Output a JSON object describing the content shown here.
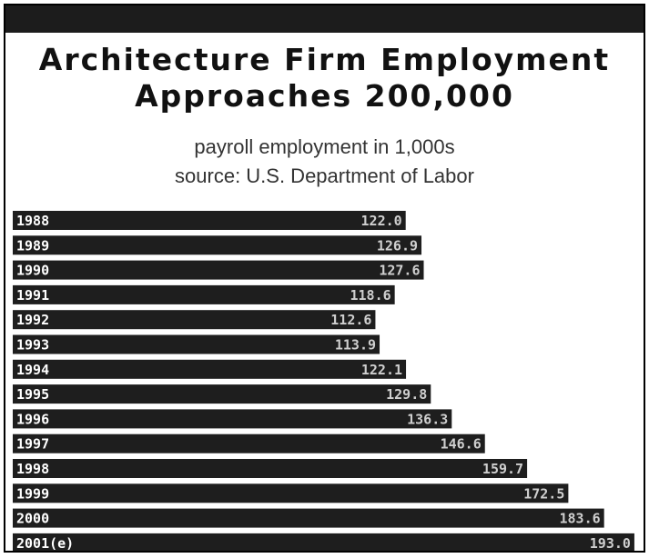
{
  "chart_data": {
    "type": "bar",
    "orientation": "horizontal",
    "title": "Architecture Firm Employment Approaches 200,000",
    "title_lines": [
      "Architecture Firm Employment",
      "Approaches 200,000"
    ],
    "subtitle_lines": [
      "payroll employment in 1,000s",
      "source: U.S. Department of Labor"
    ],
    "categories": [
      "1988",
      "1989",
      "1990",
      "1991",
      "1992",
      "1993",
      "1994",
      "1995",
      "1996",
      "1997",
      "1998",
      "1999",
      "2000",
      "2001(e)"
    ],
    "values": [
      122.0,
      126.9,
      127.6,
      118.6,
      112.6,
      113.9,
      122.1,
      129.8,
      136.3,
      146.6,
      159.7,
      172.5,
      183.6,
      193.0
    ],
    "value_labels": [
      "122.0",
      "126.9",
      "127.6",
      "118.6",
      "112.6",
      "113.9",
      "122.1",
      "129.8",
      "136.3",
      "146.6",
      "159.7",
      "172.5",
      "183.6",
      "193.0"
    ],
    "bar_color": "#1e1e1e",
    "header_bar_color": "#1c1c1c",
    "label_color": "#ffffff",
    "value_label_color": "#cfcfcf",
    "xlim": [
      0,
      195
    ]
  }
}
